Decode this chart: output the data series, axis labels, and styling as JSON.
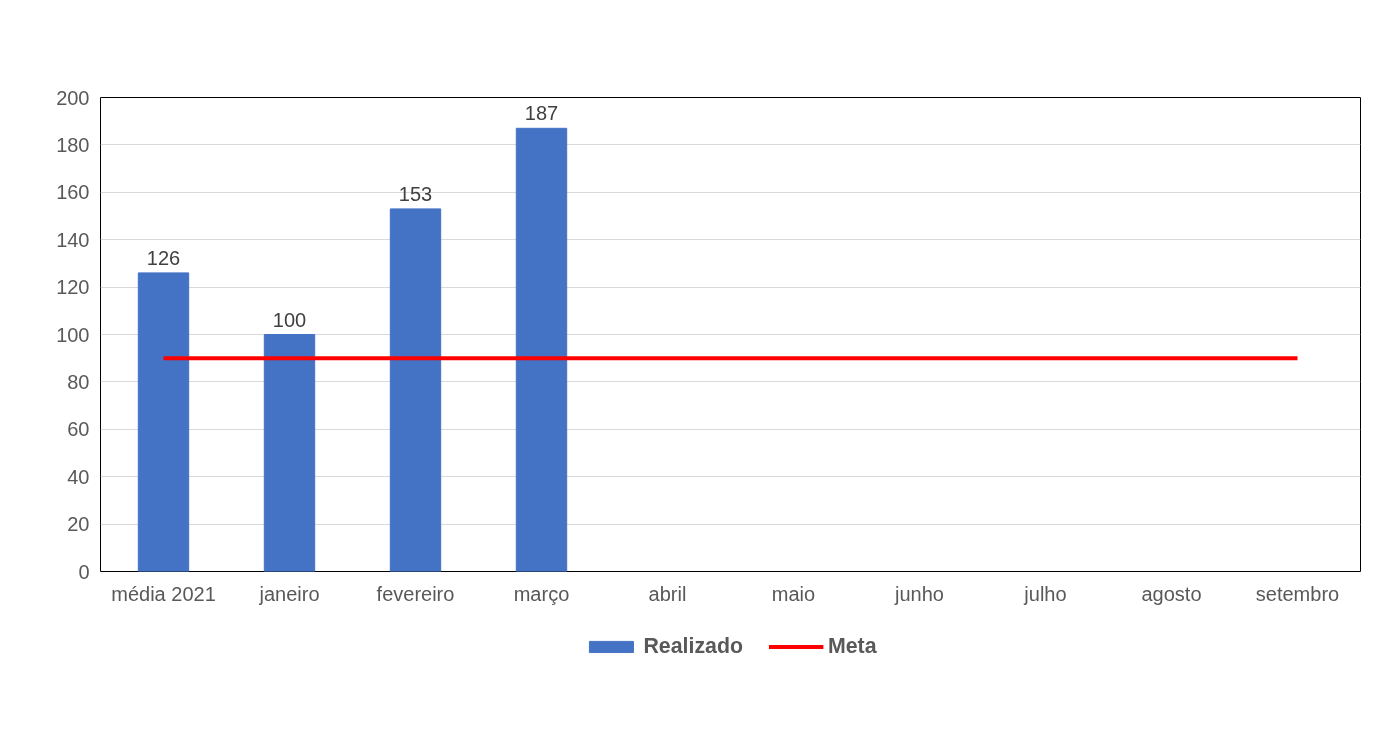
{
  "chart_data": {
    "type": "bar",
    "categories": [
      "média 2021",
      "janeiro",
      "fevereiro",
      "março",
      "abril",
      "maio",
      "junho",
      "julho",
      "agosto",
      "setembro"
    ],
    "series": [
      {
        "name": "Realizado",
        "color": "#4472c4",
        "values": [
          126,
          100,
          153,
          187,
          null,
          null,
          null,
          null,
          null,
          null
        ],
        "value_labels": [
          "126",
          "100",
          "153",
          "187",
          null,
          null,
          null,
          null,
          null,
          null
        ]
      },
      {
        "name": "Meta",
        "type": "line",
        "color": "#ff0000",
        "values": [
          90,
          90,
          90,
          90,
          90,
          90,
          90,
          90,
          90,
          90
        ]
      }
    ],
    "ylim": [
      0,
      200
    ],
    "yticks": [
      0,
      20,
      40,
      60,
      80,
      100,
      120,
      140,
      160,
      180,
      200
    ],
    "grid": "y",
    "legend": "bottom",
    "marker": "none",
    "line_style": "solid"
  }
}
